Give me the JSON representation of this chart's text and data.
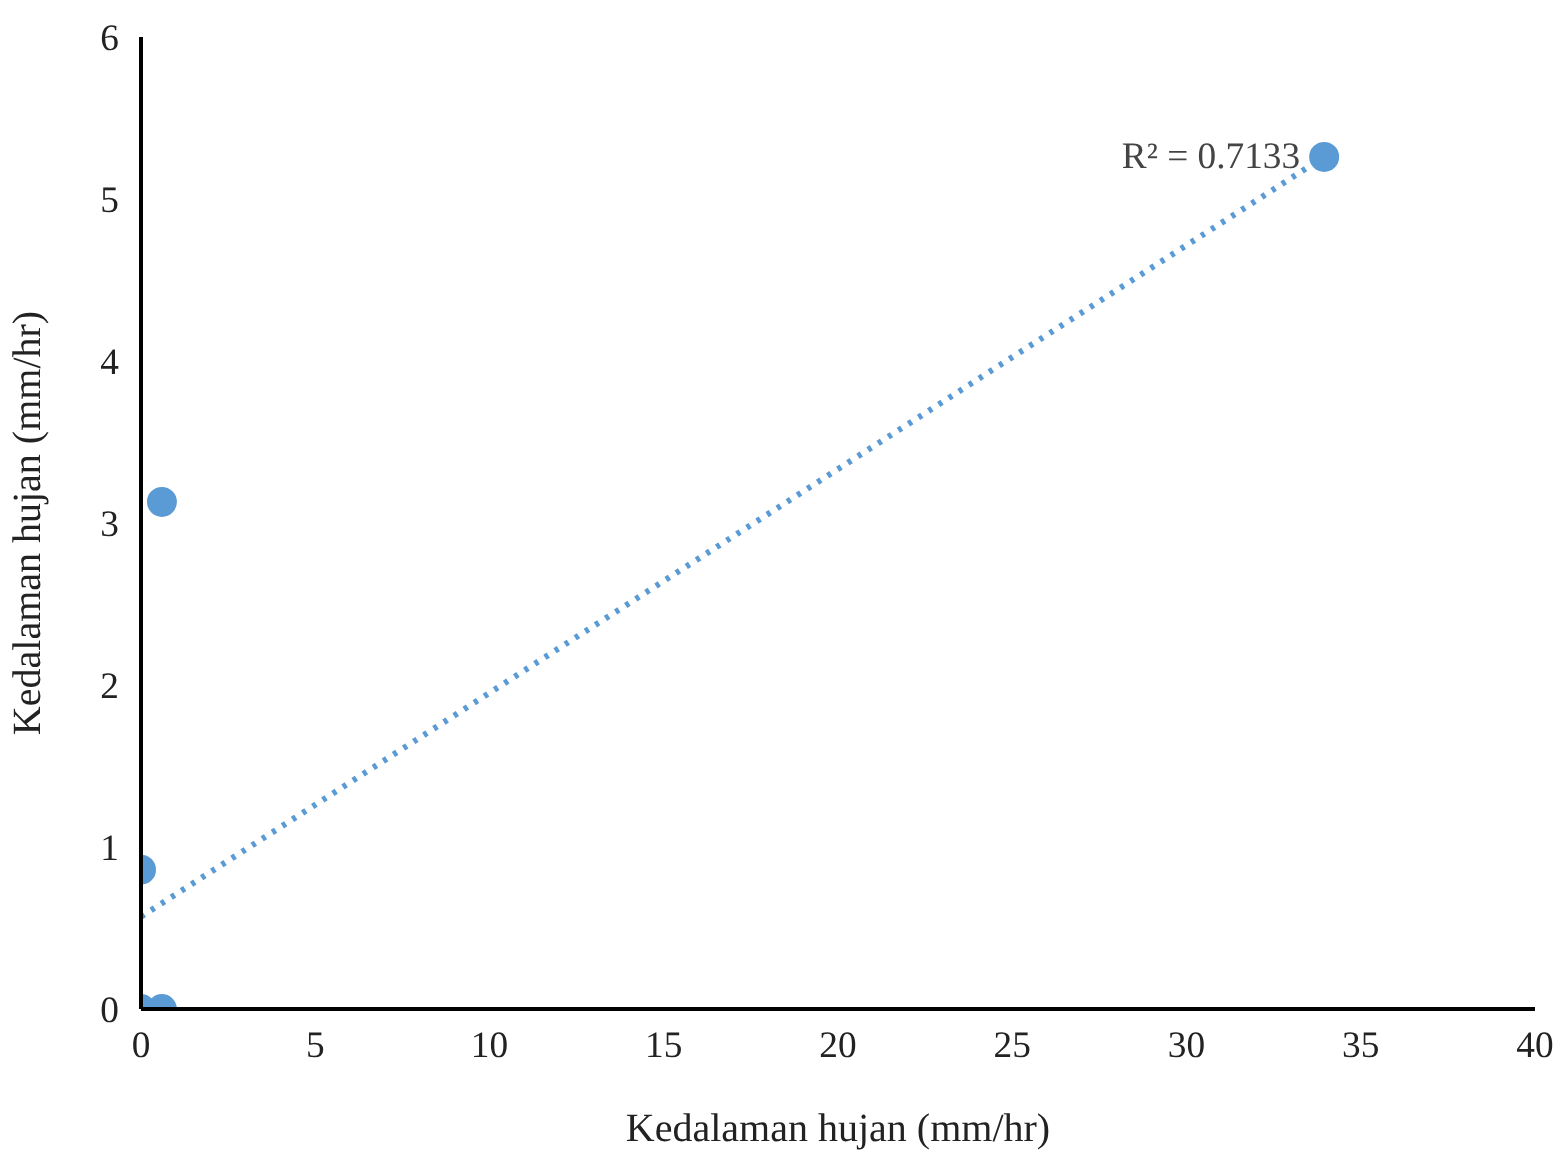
{
  "chart_data": {
    "type": "scatter",
    "xlabel": "Kedalaman hujan (mm/hr)",
    "ylabel": "Kedalaman hujan (mm/hr)",
    "xlim": [
      0,
      40
    ],
    "xticks": [
      0,
      5,
      10,
      15,
      20,
      25,
      30,
      35,
      40
    ],
    "ylim": [
      0,
      6
    ],
    "yticks": [
      0,
      1,
      2,
      3,
      4,
      5,
      6
    ],
    "grid": false,
    "series": [
      {
        "marker": "circle",
        "color": "#5b9bd5",
        "x": [
          0,
          0.6,
          0,
          0.6,
          33.95
        ],
        "values": [
          0,
          0,
          0.86,
          3.13,
          5.26
        ]
      },
      {
        "type": "line",
        "line_style": "dotted",
        "color": "#5b9bd5",
        "x": [
          0,
          33.95
        ],
        "values": [
          0.57,
          5.26
        ]
      }
    ],
    "annotations": [
      {
        "text": "R² = 0.7133",
        "x": 33.95,
        "y": 5.26
      }
    ]
  }
}
